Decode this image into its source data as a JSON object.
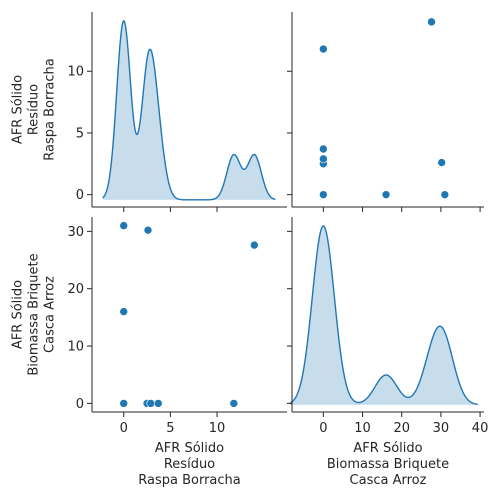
{
  "chart_data": {
    "type": "pairplot",
    "variables": [
      {
        "name": "AFR Sólido\nResíduo\nRaspa Borracha",
        "lim": [
          -3.4,
          17.5
        ],
        "ticks": [
          0,
          5,
          10
        ]
      },
      {
        "name": "AFR Sólido\nBiomassa Briquete\nCasca Arroz",
        "lim": [
          -8,
          41
        ],
        "ticks": [
          0,
          10,
          20,
          30,
          40
        ]
      }
    ],
    "y_ticks": [
      {
        "lim": [
          -1.0,
          14.8
        ],
        "ticks": [
          0,
          5,
          10
        ]
      },
      {
        "lim": [
          -1.5,
          32.5
        ],
        "ticks": [
          0,
          10,
          20,
          30
        ]
      }
    ],
    "points": [
      {
        "x": 0.0,
        "y": 0.0
      },
      {
        "x": 0.0,
        "y": 0.0
      },
      {
        "x": 0.0,
        "y": 16.0
      },
      {
        "x": 0.0,
        "y": 31.0
      },
      {
        "x": 2.5,
        "y": 0.0
      },
      {
        "x": 2.6,
        "y": 30.2
      },
      {
        "x": 2.9,
        "y": 0.0
      },
      {
        "x": 3.7,
        "y": 0.0
      },
      {
        "x": 11.8,
        "y": 0.0
      },
      {
        "x": 14.0,
        "y": 27.6
      }
    ],
    "kde_peak_density": [
      0.26,
      0.105
    ],
    "kde_bandwidth": [
      0.75,
      2.8
    ],
    "color": "#1f77b4"
  }
}
